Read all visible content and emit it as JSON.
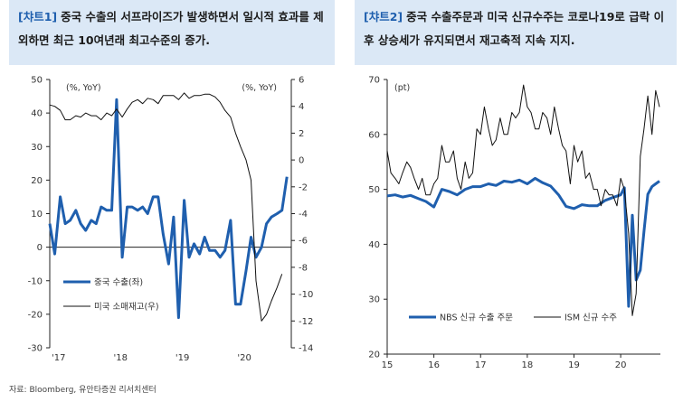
{
  "left_panel": {
    "tag": "[챠트1]",
    "title": "중국 수출의 서프라이즈가 발생하면서 일시적 효과를 제외하면 최근 10여년래 최고수준의 증가."
  },
  "right_panel": {
    "tag": "[챠트2]",
    "title": "중국 수출주문과 미국 신규수주는 코로나19로 급락 이후 상승세가 유지되면서 재고축적 지속 지지."
  },
  "source": "자료: Bloomberg, 유안타증권 리서치센터",
  "chart_data": [
    {
      "type": "line",
      "left_unit": "(%, YoY)",
      "right_unit": "(%, YoY)",
      "x_ticks": [
        "'17",
        "'18",
        "'19",
        "'20"
      ],
      "x_tick_positions": [
        2017,
        2018,
        2019,
        2020
      ],
      "xlim": [
        2017,
        2020.9
      ],
      "ylim_left": [
        -30,
        50
      ],
      "yticks_left": [
        50,
        40,
        30,
        20,
        10,
        0,
        -10,
        -20,
        -30
      ],
      "ylim_right": [
        -14,
        6
      ],
      "yticks_right": [
        6,
        4,
        2,
        0,
        -2,
        -4,
        -6,
        -8,
        -10,
        -12,
        -14
      ],
      "series": [
        {
          "name": "중국 수출(좌)",
          "axis": "left",
          "color": "#1f5fae",
          "width": 3,
          "x": [
            2017.0,
            2017.08,
            2017.17,
            2017.25,
            2017.33,
            2017.42,
            2017.5,
            2017.58,
            2017.67,
            2017.75,
            2017.83,
            2017.92,
            2018.0,
            2018.08,
            2018.17,
            2018.25,
            2018.33,
            2018.42,
            2018.5,
            2018.58,
            2018.67,
            2018.75,
            2018.83,
            2018.92,
            2019.0,
            2019.08,
            2019.17,
            2019.25,
            2019.33,
            2019.42,
            2019.5,
            2019.58,
            2019.67,
            2019.75,
            2019.83,
            2019.92,
            2020.0,
            2020.08,
            2020.17,
            2020.25,
            2020.33,
            2020.42,
            2020.5,
            2020.58,
            2020.67,
            2020.75,
            2020.83
          ],
          "y": [
            7,
            -2,
            15,
            7,
            8,
            11,
            7,
            5,
            8,
            7,
            12,
            11,
            11,
            44,
            -3,
            12,
            12,
            11,
            12,
            10,
            15,
            15,
            4,
            -5,
            9,
            -21,
            14,
            -3,
            1,
            -2,
            3,
            -1,
            -1,
            -3,
            -1,
            8,
            -17,
            -17,
            -7,
            3,
            -3,
            0,
            7,
            9,
            10,
            11,
            21
          ]
        },
        {
          "name": "미국 소매재고(우)",
          "axis": "right",
          "color": "#111111",
          "width": 1,
          "x": [
            2017.0,
            2017.08,
            2017.17,
            2017.25,
            2017.33,
            2017.42,
            2017.5,
            2017.58,
            2017.67,
            2017.75,
            2017.83,
            2017.92,
            2018.0,
            2018.08,
            2018.17,
            2018.25,
            2018.33,
            2018.42,
            2018.5,
            2018.58,
            2018.67,
            2018.75,
            2018.83,
            2018.92,
            2019.0,
            2019.08,
            2019.17,
            2019.25,
            2019.33,
            2019.42,
            2019.5,
            2019.58,
            2019.67,
            2019.75,
            2019.83,
            2019.92,
            2020.0,
            2020.08,
            2020.17,
            2020.25,
            2020.33,
            2020.42,
            2020.5,
            2020.58,
            2020.67,
            2020.75
          ],
          "y": [
            4.1,
            4.0,
            3.7,
            3.0,
            3.0,
            3.3,
            3.2,
            3.5,
            3.3,
            3.3,
            3.0,
            3.5,
            3.3,
            3.8,
            3.2,
            3.8,
            4.3,
            4.5,
            4.2,
            4.6,
            4.5,
            4.2,
            4.8,
            4.8,
            4.8,
            4.5,
            5.0,
            4.6,
            4.8,
            4.8,
            4.9,
            4.9,
            4.7,
            4.3,
            3.7,
            3.2,
            2.0,
            1.0,
            0.0,
            -1.5,
            -9.0,
            -12.0,
            -11.5,
            -10.5,
            -9.5,
            -8.5
          ]
        }
      ]
    },
    {
      "type": "line",
      "unit": "(pt)",
      "x_ticks": [
        "15",
        "16",
        "17",
        "18",
        "19",
        "20"
      ],
      "x_tick_positions": [
        2015,
        2016,
        2017,
        2018,
        2019,
        2020
      ],
      "xlim": [
        2015,
        2020.85
      ],
      "ylim": [
        20,
        70
      ],
      "yticks": [
        70,
        60,
        50,
        40,
        30,
        20
      ],
      "series": [
        {
          "name": "NBS 신규 수출 주문",
          "color": "#1f5fae",
          "width": 3,
          "x": [
            2015.0,
            2015.17,
            2015.33,
            2015.5,
            2015.67,
            2015.83,
            2016.0,
            2016.17,
            2016.33,
            2016.5,
            2016.67,
            2016.83,
            2017.0,
            2017.17,
            2017.33,
            2017.5,
            2017.67,
            2017.83,
            2018.0,
            2018.17,
            2018.33,
            2018.5,
            2018.67,
            2018.83,
            2019.0,
            2019.17,
            2019.33,
            2019.5,
            2019.67,
            2019.83,
            2020.0,
            2020.08,
            2020.17,
            2020.25,
            2020.33,
            2020.42,
            2020.5,
            2020.58,
            2020.67,
            2020.75,
            2020.83
          ],
          "y": [
            48.8,
            49.0,
            48.6,
            48.9,
            48.3,
            47.8,
            46.8,
            50.0,
            49.6,
            49.0,
            50.0,
            50.5,
            50.5,
            51.0,
            50.7,
            51.5,
            51.3,
            51.7,
            51.0,
            52.0,
            51.2,
            50.6,
            49.0,
            46.9,
            46.5,
            47.2,
            47.0,
            47.0,
            48.0,
            48.5,
            49.0,
            50.3,
            28.7,
            45.3,
            33.5,
            35.3,
            42.4,
            49.1,
            50.5,
            51.0,
            51.5
          ]
        },
        {
          "name": "ISM 신규 수주",
          "color": "#111111",
          "width": 1,
          "x": [
            2015.0,
            2015.08,
            2015.17,
            2015.25,
            2015.33,
            2015.42,
            2015.5,
            2015.58,
            2015.67,
            2015.75,
            2015.83,
            2015.92,
            2016.0,
            2016.08,
            2016.17,
            2016.25,
            2016.33,
            2016.42,
            2016.5,
            2016.58,
            2016.67,
            2016.75,
            2016.83,
            2016.92,
            2017.0,
            2017.08,
            2017.17,
            2017.25,
            2017.33,
            2017.42,
            2017.5,
            2017.58,
            2017.67,
            2017.75,
            2017.83,
            2017.92,
            2018.0,
            2018.08,
            2018.17,
            2018.25,
            2018.33,
            2018.42,
            2018.5,
            2018.58,
            2018.67,
            2018.75,
            2018.83,
            2018.92,
            2019.0,
            2019.08,
            2019.17,
            2019.25,
            2019.33,
            2019.42,
            2019.5,
            2019.58,
            2019.67,
            2019.75,
            2019.83,
            2019.92,
            2020.0,
            2020.08,
            2020.17,
            2020.25,
            2020.33,
            2020.42,
            2020.5,
            2020.58,
            2020.67,
            2020.75,
            2020.83
          ],
          "y": [
            57,
            53,
            52,
            51,
            53,
            55,
            54,
            52,
            50,
            52,
            49,
            49,
            51,
            52,
            58,
            55,
            55,
            57,
            52,
            50,
            55,
            52,
            53,
            61,
            60,
            65,
            61,
            58,
            59,
            63,
            60,
            60,
            64,
            63,
            64,
            69,
            65,
            64,
            61,
            61,
            64,
            63,
            60,
            65,
            61,
            58,
            57,
            51,
            58,
            55,
            57,
            52,
            53,
            50,
            50,
            47,
            50,
            49,
            49,
            47,
            52,
            50,
            42,
            27,
            31,
            56,
            61,
            67,
            60,
            68,
            65
          ]
        }
      ]
    }
  ]
}
